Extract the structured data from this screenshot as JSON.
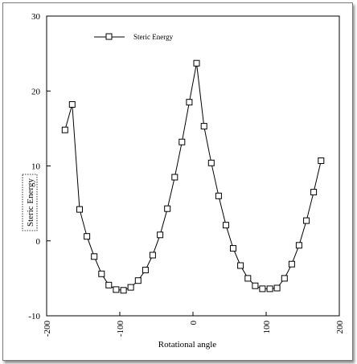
{
  "chart_data": {
    "type": "line",
    "title": "",
    "xlabel": "Rotational angle",
    "ylabel": "Steric Energy",
    "xlim": [
      -200,
      200
    ],
    "ylim": [
      -10,
      30
    ],
    "xticks": [
      -200,
      -100,
      0,
      100,
      200
    ],
    "yticks": [
      -10,
      0,
      10,
      20,
      30
    ],
    "xtick_labels": [
      "-200",
      "-100",
      "0",
      "100",
      "200"
    ],
    "ytick_labels": [
      "-10",
      "0",
      "10",
      "20",
      "30"
    ],
    "grid": false,
    "legend_position": "top-left",
    "series": [
      {
        "name": "Steric Energy",
        "color": "#000000",
        "marker": "square-open",
        "x": [
          -175,
          -165,
          -155,
          -145,
          -135,
          -125,
          -115,
          -105,
          -95,
          -85,
          -75,
          -65,
          -55,
          -45,
          -35,
          -25,
          -15,
          -5,
          5,
          15,
          25,
          35,
          45,
          55,
          65,
          75,
          85,
          95,
          105,
          115,
          125,
          135,
          145,
          155,
          165,
          175
        ],
        "y": [
          14.8,
          18.2,
          4.2,
          0.6,
          -2.1,
          -4.4,
          -5.9,
          -6.5,
          -6.6,
          -6.2,
          -5.3,
          -3.9,
          -1.9,
          0.8,
          4.3,
          8.5,
          13.2,
          18.5,
          23.7,
          15.3,
          10.4,
          6.0,
          2.1,
          -1.0,
          -3.3,
          -5.0,
          -6.0,
          -6.4,
          -6.4,
          -6.3,
          -5.0,
          -3.1,
          -0.6,
          2.7,
          6.5,
          10.7
        ]
      }
    ]
  }
}
